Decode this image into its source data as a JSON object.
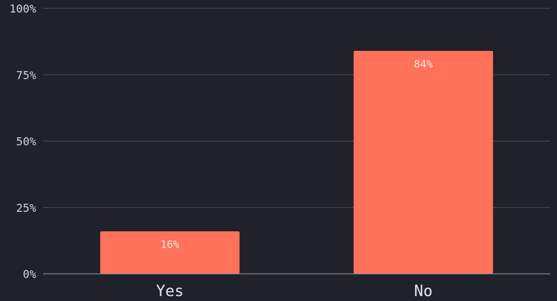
{
  "chart_data": {
    "type": "bar",
    "categories": [
      "Yes",
      "No"
    ],
    "values": [
      16,
      84
    ],
    "data_labels": [
      "16%",
      "84%"
    ],
    "title": "",
    "xlabel": "",
    "ylabel": "",
    "ylim": [
      0,
      100
    ],
    "y_ticks": [
      0,
      25,
      50,
      75,
      100
    ],
    "y_tick_labels": [
      "0%",
      "25%",
      "50%",
      "75%",
      "100%"
    ],
    "grid": true,
    "legend": "none",
    "colors": {
      "bar": "#ff7158",
      "background": "#1f212b",
      "grid": "#4a4d59",
      "axis": "#9ea1aa"
    }
  }
}
